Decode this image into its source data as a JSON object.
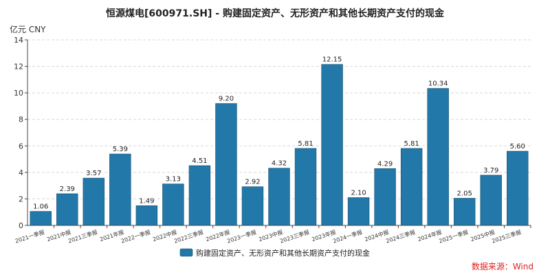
{
  "chart_data": {
    "type": "bar",
    "title": "恒源煤电[600971.SH] - 购建固定资产、无形资产和其他长期资产支付的现金",
    "unit_label": "亿元  CNY",
    "categories": [
      "2021一季报",
      "2021中报",
      "2021三季报",
      "2021年报",
      "2022一季报",
      "2022中报",
      "2022三季报",
      "2022年报",
      "2023一季报",
      "2023中报",
      "2023三季报",
      "2023年报",
      "2024一季报",
      "2024中报",
      "2024三季报",
      "2024年报",
      "2025一季报",
      "2025中报",
      "2025三季报"
    ],
    "series": [
      {
        "name": "购建固定资产、无形资产和其他长期资产支付的现金",
        "values": [
          1.06,
          2.39,
          3.57,
          5.39,
          1.49,
          3.13,
          4.51,
          9.2,
          2.92,
          4.32,
          5.81,
          12.15,
          2.1,
          4.29,
          5.81,
          10.34,
          2.05,
          3.79,
          5.6
        ],
        "labels": [
          "1.06",
          "2.39",
          "3.57",
          "5.39",
          "1.49",
          "3.13",
          "4.51",
          "9.20",
          "2.92",
          "4.32",
          "5.81",
          "12.15",
          "2.10",
          "4.29",
          "5.81",
          "10.34",
          "2.05",
          "3.79",
          "5.60"
        ],
        "color": "#2278a8"
      }
    ],
    "ylim": [
      0,
      14
    ],
    "yticks": [
      "0",
      "2",
      "4",
      "6",
      "8",
      "10",
      "12",
      "14"
    ],
    "grid": true,
    "legend_position": "bottom-center",
    "source": "数据来源：Wind"
  }
}
